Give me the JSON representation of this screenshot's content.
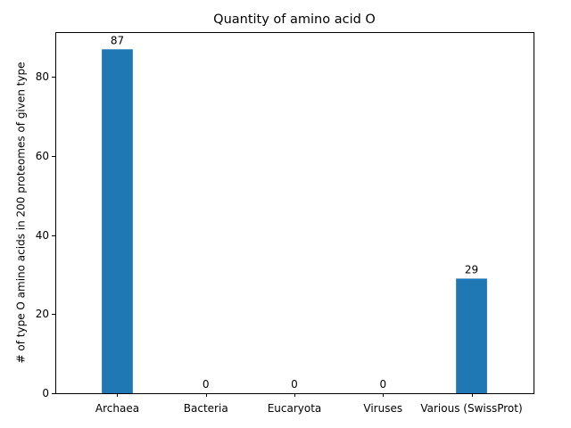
{
  "chart_data": {
    "type": "bar",
    "title": "Quantity of amino acid O",
    "xlabel": "",
    "ylabel": "# of type O amino acids in 200 proteomes of given type",
    "categories": [
      "Archaea",
      "Bacteria",
      "Eucaryota",
      "Viruses",
      "Various (SwissProt)"
    ],
    "values": [
      87,
      0,
      0,
      0,
      29
    ],
    "data_labels": [
      "87",
      "0",
      "0",
      "0",
      "29"
    ],
    "ylim": [
      0,
      91.35
    ],
    "yticks": [
      0,
      20,
      40,
      60,
      80
    ],
    "bar_color": "#1f77b4",
    "grid": false,
    "legend": "none"
  }
}
